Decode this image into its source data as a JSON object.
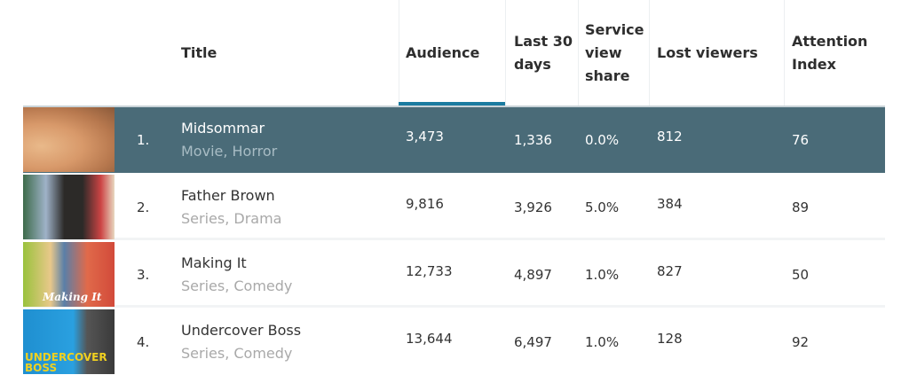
{
  "columns": {
    "title": "Title",
    "audience": "Audience",
    "last30": "Last 30 days",
    "share": "Service view share",
    "lost": "Lost viewers",
    "attention": "Attention Index"
  },
  "accent_color": "#1b7ba0",
  "selected_row_color": "#4a6b78",
  "rows": [
    {
      "rank": "1.",
      "title": "Midsommar",
      "genre": "Movie, Horror",
      "audience": "3,473",
      "last30": "1,336",
      "share": "0.0%",
      "lost": "812",
      "attention": "76"
    },
    {
      "rank": "2.",
      "title": "Father Brown",
      "genre": "Series, Drama",
      "audience": "9,816",
      "last30": "3,926",
      "share": "5.0%",
      "lost": "384",
      "attention": "89"
    },
    {
      "rank": "3.",
      "title": "Making It",
      "genre": "Series, Comedy",
      "audience": "12,733",
      "last30": "4,897",
      "share": "1.0%",
      "lost": "827",
      "attention": "50",
      "poster_text": "Making It"
    },
    {
      "rank": "4.",
      "title": "Undercover Boss",
      "genre": "Series, Comedy",
      "audience": "13,644",
      "last30": "6,497",
      "share": "1.0%",
      "lost": "128",
      "attention": "92",
      "poster_text": "UNDERCOVER BOSS"
    }
  ]
}
